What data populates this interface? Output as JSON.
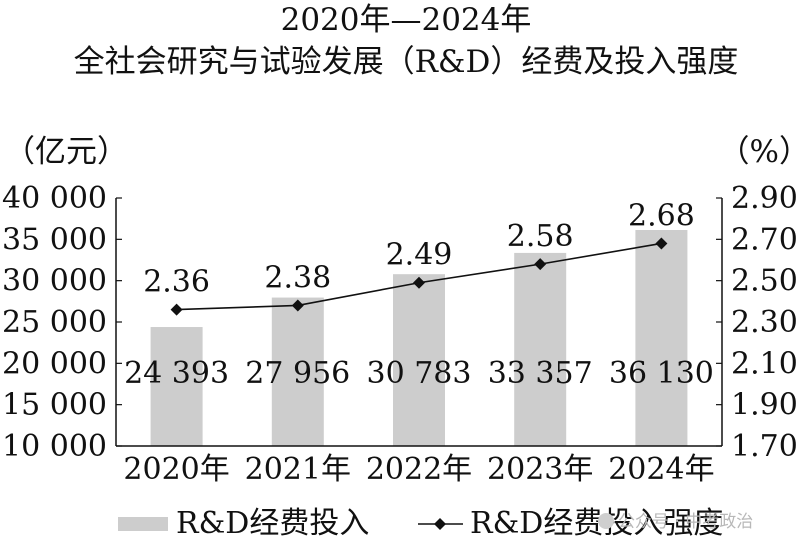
{
  "chart_data": {
    "type": "bar",
    "title": "2020年—2024年",
    "subtitle": "全社会研究与试验发展（R&D）经费及投入强度",
    "categories": [
      "2020年",
      "2021年",
      "2022年",
      "2023年",
      "2024年"
    ],
    "series": [
      {
        "name": "R&D经费投入",
        "type": "bar",
        "axis": "left",
        "values": [
          24393,
          27956,
          30783,
          33357,
          36130
        ],
        "labels": [
          "24 393",
          "27 956",
          "30 783",
          "33 357",
          "36 130"
        ]
      },
      {
        "name": "R&D经费投入强度",
        "type": "line",
        "axis": "right",
        "values": [
          2.36,
          2.38,
          2.49,
          2.58,
          2.68
        ],
        "labels": [
          "2.36",
          "2.38",
          "2.49",
          "2.58",
          "2.68"
        ]
      }
    ],
    "ylabel_left": "（亿元）",
    "ylabel_right": "（%）",
    "ylim_left": [
      10000,
      40000
    ],
    "ylim_right": [
      1.7,
      2.9
    ],
    "yticks_left": [
      "40 000",
      "35 000",
      "30 000",
      "25 000",
      "20 000",
      "15 000",
      "10 000"
    ],
    "yticks_right": [
      "2.90",
      "2.70",
      "2.50",
      "2.30",
      "2.10",
      "1.90",
      "1.70"
    ],
    "grid": false,
    "legend": "bottom",
    "colors": {
      "bar": "#cdcdcd",
      "line": "#111111"
    }
  },
  "watermark": {
    "text": "公众号 · 中考政治",
    "icon": "wechat-icon"
  }
}
